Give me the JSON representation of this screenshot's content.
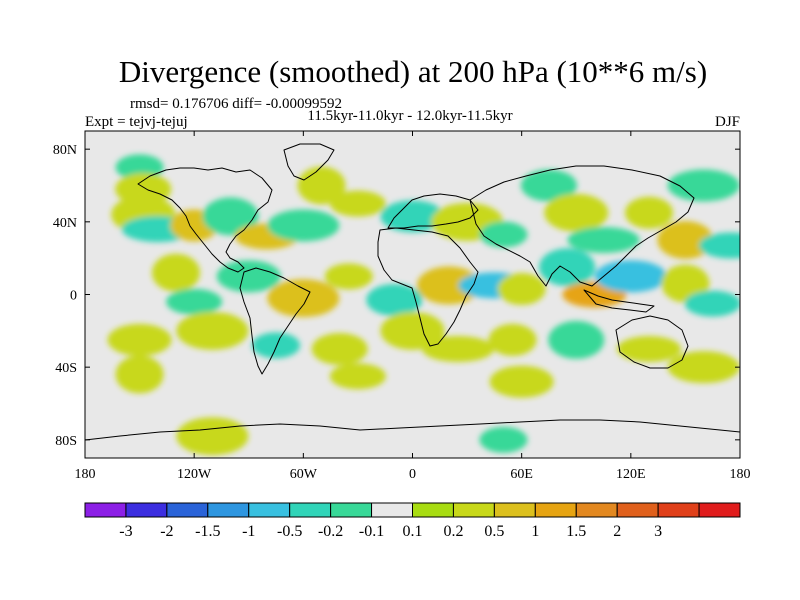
{
  "chart_data": {
    "type": "heatmap",
    "title": "Divergence (smoothed) at 200 hPa (10**6 m/s)",
    "stats_text": "rmsd= 0.176706  diff= -0.00099592",
    "subtitle": "11.5kyr-11.0kyr - 12.0kyr-11.5kyr",
    "left_label": "Expt = tejvj-tejuj",
    "right_label": "DJF",
    "xlim": [
      -180,
      180
    ],
    "ylim": [
      -90,
      90
    ],
    "x_ticks": [
      {
        "value": -180,
        "label": "180"
      },
      {
        "value": -120,
        "label": "120W"
      },
      {
        "value": -60,
        "label": "60W"
      },
      {
        "value": 0,
        "label": "0"
      },
      {
        "value": 60,
        "label": "60E"
      },
      {
        "value": 120,
        "label": "120E"
      },
      {
        "value": 180,
        "label": "180"
      }
    ],
    "y_ticks": [
      {
        "value": 80,
        "label": "80N"
      },
      {
        "value": 40,
        "label": "40N"
      },
      {
        "value": 0,
        "label": "0"
      },
      {
        "value": -40,
        "label": "40S"
      },
      {
        "value": -80,
        "label": "80S"
      }
    ],
    "colorbar": {
      "colors": [
        "#8c1fe6",
        "#3c2ee0",
        "#2a63d8",
        "#2e96e0",
        "#38c0e0",
        "#30d4b8",
        "#38d898",
        "#e8e8e8",
        "#a8dc12",
        "#c8d81a",
        "#dcc01e",
        "#e6a412",
        "#e28820",
        "#e0601c",
        "#e0401a",
        "#e01c1c"
      ],
      "labels": [
        "-3",
        "-2",
        "-1.5",
        "-1",
        "-0.5",
        "-0.2",
        "-0.1",
        "0.1",
        "0.2",
        "0.5",
        "1",
        "1.5",
        "2",
        "3"
      ]
    },
    "blobs": [
      {
        "lon": -150,
        "lat": 70,
        "value": -0.15
      },
      {
        "lon": -148,
        "lat": 58,
        "value": 0.25
      },
      {
        "lon": -148,
        "lat": 44,
        "value": 0.3
      },
      {
        "lon": -140,
        "lat": 36,
        "value": -0.4
      },
      {
        "lon": -120,
        "lat": 38,
        "value": 0.6
      },
      {
        "lon": -100,
        "lat": 43,
        "value": -0.2
      },
      {
        "lon": -80,
        "lat": 32,
        "value": 0.6
      },
      {
        "lon": -60,
        "lat": 38,
        "value": -0.15
      },
      {
        "lon": -50,
        "lat": 60,
        "value": 0.2
      },
      {
        "lon": -30,
        "lat": 50,
        "value": 0.2
      },
      {
        "lon": 0,
        "lat": 43,
        "value": -0.3
      },
      {
        "lon": 30,
        "lat": 40,
        "value": 0.2
      },
      {
        "lon": 50,
        "lat": 33,
        "value": -0.2
      },
      {
        "lon": 75,
        "lat": 60,
        "value": -0.15
      },
      {
        "lon": 90,
        "lat": 45,
        "value": 0.3
      },
      {
        "lon": 105,
        "lat": 30,
        "value": -0.2
      },
      {
        "lon": 130,
        "lat": 45,
        "value": 0.35
      },
      {
        "lon": 150,
        "lat": 30,
        "value": 0.6
      },
      {
        "lon": 175,
        "lat": 27,
        "value": -0.4
      },
      {
        "lon": 160,
        "lat": 60,
        "value": -0.15
      },
      {
        "lon": -130,
        "lat": 12,
        "value": 0.25
      },
      {
        "lon": -120,
        "lat": -4,
        "value": -0.2
      },
      {
        "lon": -90,
        "lat": 10,
        "value": -0.2
      },
      {
        "lon": -60,
        "lat": -2,
        "value": 0.8
      },
      {
        "lon": -35,
        "lat": 10,
        "value": 0.3
      },
      {
        "lon": -10,
        "lat": -3,
        "value": -0.4
      },
      {
        "lon": 20,
        "lat": 5,
        "value": 0.5
      },
      {
        "lon": 45,
        "lat": 5,
        "value": -0.8
      },
      {
        "lon": 60,
        "lat": 3,
        "value": 0.3
      },
      {
        "lon": 85,
        "lat": 15,
        "value": -0.4
      },
      {
        "lon": 100,
        "lat": 0,
        "value": 1.2
      },
      {
        "lon": 120,
        "lat": 10,
        "value": -0.6
      },
      {
        "lon": 150,
        "lat": 6,
        "value": 0.4
      },
      {
        "lon": 165,
        "lat": -5,
        "value": -0.3
      },
      {
        "lon": -150,
        "lat": -25,
        "value": 0.3
      },
      {
        "lon": -110,
        "lat": -20,
        "value": 0.4
      },
      {
        "lon": -75,
        "lat": -28,
        "value": -0.3
      },
      {
        "lon": -40,
        "lat": -30,
        "value": 0.2
      },
      {
        "lon": 0,
        "lat": -20,
        "value": 0.2
      },
      {
        "lon": 25,
        "lat": -30,
        "value": 0.4
      },
      {
        "lon": 55,
        "lat": -25,
        "value": 0.3
      },
      {
        "lon": 90,
        "lat": -25,
        "value": -0.2
      },
      {
        "lon": 130,
        "lat": -30,
        "value": 0.25
      },
      {
        "lon": 160,
        "lat": -40,
        "value": 0.3
      },
      {
        "lon": -150,
        "lat": -44,
        "value": 0.2
      },
      {
        "lon": -30,
        "lat": -45,
        "value": 0.2
      },
      {
        "lon": 60,
        "lat": -48,
        "value": 0.2
      },
      {
        "lon": -110,
        "lat": -78,
        "value": 0.2
      },
      {
        "lon": 50,
        "lat": -80,
        "value": -0.2
      }
    ]
  }
}
